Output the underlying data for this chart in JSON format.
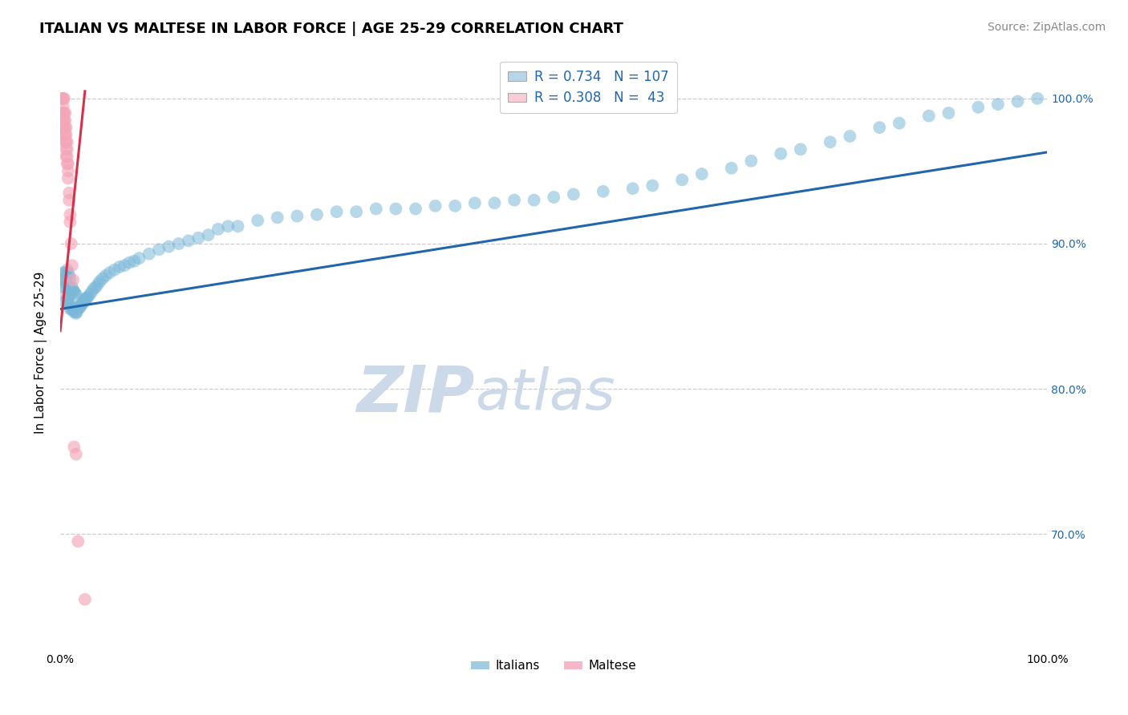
{
  "title": "ITALIAN VS MALTESE IN LABOR FORCE | AGE 25-29 CORRELATION CHART",
  "source": "Source: ZipAtlas.com",
  "ylabel": "In Labor Force | Age 25-29",
  "xlim": [
    0.0,
    1.0
  ],
  "ylim": [
    0.62,
    1.03
  ],
  "yticks": [
    0.7,
    0.8,
    0.9,
    1.0
  ],
  "ytick_labels": [
    "70.0%",
    "80.0%",
    "90.0%",
    "100.0%"
  ],
  "xticks": [
    0.0,
    0.1,
    0.2,
    0.3,
    0.4,
    0.5,
    0.6,
    0.7,
    0.8,
    0.9,
    1.0
  ],
  "italian_R": 0.734,
  "italian_N": 107,
  "maltese_R": 0.308,
  "maltese_N": 43,
  "blue_color": "#7ab8d8",
  "pink_color": "#f4a6b8",
  "blue_line_color": "#2166ac",
  "pink_line_color": "#d6304a",
  "legend_blue_fill": "#b8d4e8",
  "legend_pink_fill": "#f9cdd6",
  "grid_color": "#c0c0c0",
  "watermark_zip": "ZIP",
  "watermark_atlas": "atlas",
  "watermark_color": "#ccd9e8",
  "title_fontsize": 13,
  "source_fontsize": 10,
  "legend_fontsize": 12,
  "ylabel_fontsize": 11,
  "italian_x": [
    0.002,
    0.003,
    0.004,
    0.004,
    0.005,
    0.005,
    0.005,
    0.006,
    0.006,
    0.006,
    0.007,
    0.007,
    0.007,
    0.008,
    0.008,
    0.008,
    0.009,
    0.009,
    0.009,
    0.01,
    0.01,
    0.01,
    0.011,
    0.011,
    0.012,
    0.012,
    0.013,
    0.013,
    0.014,
    0.014,
    0.015,
    0.015,
    0.016,
    0.016,
    0.017,
    0.018,
    0.019,
    0.02,
    0.021,
    0.022,
    0.023,
    0.024,
    0.025,
    0.026,
    0.027,
    0.028,
    0.03,
    0.032,
    0.034,
    0.036,
    0.038,
    0.04,
    0.043,
    0.046,
    0.05,
    0.055,
    0.06,
    0.065,
    0.07,
    0.075,
    0.08,
    0.09,
    0.1,
    0.11,
    0.12,
    0.13,
    0.14,
    0.15,
    0.16,
    0.17,
    0.18,
    0.2,
    0.22,
    0.24,
    0.26,
    0.28,
    0.3,
    0.32,
    0.34,
    0.36,
    0.38,
    0.4,
    0.42,
    0.44,
    0.46,
    0.48,
    0.5,
    0.52,
    0.55,
    0.58,
    0.6,
    0.63,
    0.65,
    0.68,
    0.7,
    0.73,
    0.75,
    0.78,
    0.8,
    0.83,
    0.85,
    0.88,
    0.9,
    0.93,
    0.95,
    0.97,
    0.99
  ],
  "italian_y": [
    0.875,
    0.88,
    0.87,
    0.875,
    0.86,
    0.875,
    0.88,
    0.865,
    0.87,
    0.878,
    0.862,
    0.872,
    0.882,
    0.86,
    0.87,
    0.88,
    0.858,
    0.868,
    0.878,
    0.855,
    0.865,
    0.875,
    0.855,
    0.868,
    0.857,
    0.87,
    0.855,
    0.868,
    0.853,
    0.867,
    0.853,
    0.866,
    0.852,
    0.865,
    0.853,
    0.856,
    0.856,
    0.856,
    0.858,
    0.858,
    0.86,
    0.86,
    0.862,
    0.862,
    0.863,
    0.863,
    0.865,
    0.867,
    0.869,
    0.87,
    0.872,
    0.874,
    0.876,
    0.878,
    0.88,
    0.882,
    0.884,
    0.885,
    0.887,
    0.888,
    0.89,
    0.893,
    0.896,
    0.898,
    0.9,
    0.902,
    0.904,
    0.906,
    0.91,
    0.912,
    0.912,
    0.916,
    0.918,
    0.919,
    0.92,
    0.922,
    0.922,
    0.924,
    0.924,
    0.924,
    0.926,
    0.926,
    0.928,
    0.928,
    0.93,
    0.93,
    0.932,
    0.934,
    0.936,
    0.938,
    0.94,
    0.944,
    0.948,
    0.952,
    0.957,
    0.962,
    0.965,
    0.97,
    0.974,
    0.98,
    0.983,
    0.988,
    0.99,
    0.994,
    0.996,
    0.998,
    1.0
  ],
  "maltese_x": [
    0.001,
    0.001,
    0.002,
    0.002,
    0.002,
    0.003,
    0.003,
    0.003,
    0.003,
    0.003,
    0.004,
    0.004,
    0.004,
    0.004,
    0.004,
    0.005,
    0.005,
    0.005,
    0.005,
    0.005,
    0.006,
    0.006,
    0.006,
    0.006,
    0.006,
    0.007,
    0.007,
    0.007,
    0.007,
    0.008,
    0.008,
    0.008,
    0.009,
    0.009,
    0.01,
    0.01,
    0.011,
    0.012,
    0.013,
    0.014,
    0.016,
    0.018,
    0.025
  ],
  "maltese_y": [
    0.99,
    1.0,
    0.985,
    0.99,
    1.0,
    0.98,
    0.985,
    0.99,
    0.995,
    1.0,
    0.975,
    0.98,
    0.985,
    0.99,
    1.0,
    0.97,
    0.975,
    0.98,
    0.985,
    0.99,
    0.96,
    0.965,
    0.97,
    0.975,
    0.98,
    0.955,
    0.96,
    0.965,
    0.97,
    0.945,
    0.95,
    0.955,
    0.93,
    0.935,
    0.915,
    0.92,
    0.9,
    0.885,
    0.875,
    0.76,
    0.755,
    0.695,
    0.655
  ],
  "blue_line_x0": 0.0,
  "blue_line_y0": 0.855,
  "blue_line_x1": 1.0,
  "blue_line_y1": 0.963,
  "pink_line_x0": 0.0,
  "pink_line_y0": 0.84,
  "pink_line_x1": 0.025,
  "pink_line_y1": 1.005
}
